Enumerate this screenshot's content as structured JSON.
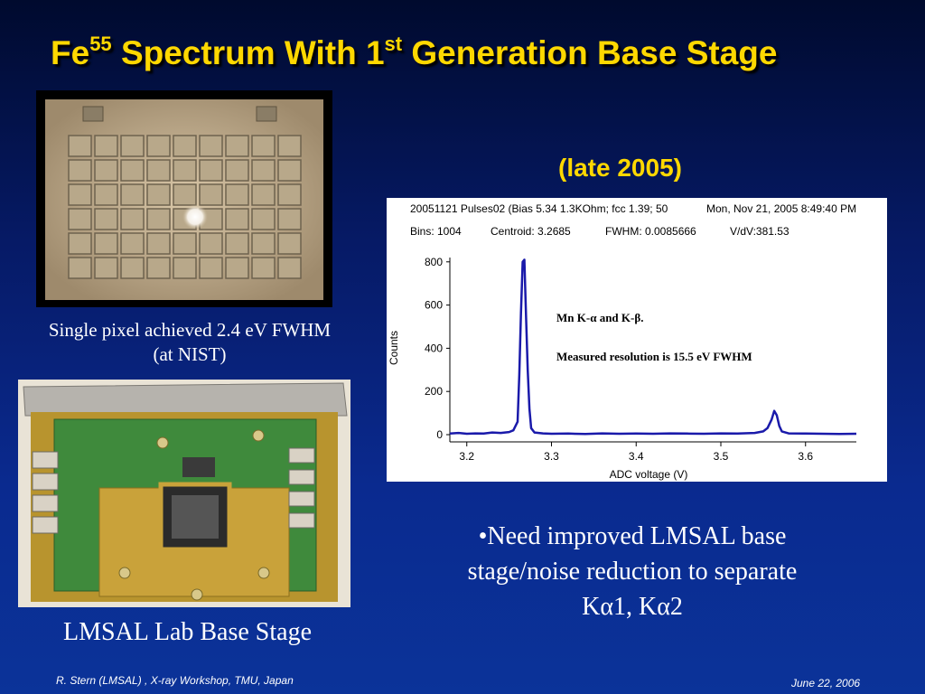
{
  "slide": {
    "title_part1": "Fe",
    "title_sup1": "55",
    "title_part2": " Spectrum With 1",
    "title_sup2": "st",
    "title_part3": " Generation Base Stage",
    "date_note": "(late 2005)",
    "caption_pixel_line1": "Single pixel achieved 2.4 eV FWHM",
    "caption_pixel_line2": "(at NIST)",
    "caption_stage": "LMSAL Lab Base Stage",
    "bullet_line1": "•Need improved LMSAL base",
    "bullet_line2": "stage/noise reduction to separate",
    "bullet_line3": "Kα1, Kα2",
    "footer_left": "R. Stern (LMSAL) , X-ray Workshop, TMU, Japan",
    "footer_right": "June 22, 2006",
    "colors": {
      "title": "#ffd800",
      "background": "#0a2a8f",
      "line": "#1a1aaa"
    }
  },
  "chart_data": {
    "type": "line",
    "header_line1_a": "20051121 Pulses02 (Bias 5.34 1.3KOhm; fcc 1.39; 50",
    "header_line1_b": "Mon, Nov 21, 2005  8:49:40 PM",
    "header_bins": "Bins: 1004",
    "header_centroid": "Centroid: 3.2685",
    "header_fwhm": "FWHM: 0.0085666",
    "header_vdv": "V/dV:381.53",
    "annotation_line1": "Mn K-α and K-β.",
    "annotation_line2": "Measured resolution is 15.5 eV FWHM",
    "xlabel": "ADC voltage (V)",
    "ylabel": "Counts",
    "xlim": [
      3.18,
      3.66
    ],
    "ylim": [
      0,
      820
    ],
    "xticks": [
      3.2,
      3.3,
      3.4,
      3.5,
      3.6
    ],
    "xtick_labels": [
      "3.2",
      "3.3",
      "3.4",
      "3.5",
      "3.6"
    ],
    "yticks": [
      0,
      200,
      400,
      600,
      800
    ],
    "ytick_labels": [
      "0",
      "200",
      "400",
      "600",
      "800"
    ],
    "series": [
      {
        "x": [
          3.18,
          3.19,
          3.2,
          3.21,
          3.22,
          3.23,
          3.24,
          3.25,
          3.255,
          3.26,
          3.262,
          3.264,
          3.266,
          3.268,
          3.27,
          3.272,
          3.274,
          3.276,
          3.28,
          3.29,
          3.3,
          3.32,
          3.34,
          3.36,
          3.38,
          3.4,
          3.42,
          3.44,
          3.46,
          3.48,
          3.5,
          3.52,
          3.54,
          3.55,
          3.555,
          3.56,
          3.563,
          3.566,
          3.569,
          3.572,
          3.58,
          3.6,
          3.62,
          3.64,
          3.66
        ],
        "values": [
          5,
          8,
          4,
          6,
          5,
          10,
          8,
          12,
          20,
          60,
          280,
          560,
          800,
          810,
          540,
          300,
          120,
          30,
          10,
          6,
          4,
          5,
          3,
          6,
          4,
          5,
          4,
          6,
          5,
          4,
          6,
          5,
          8,
          15,
          30,
          70,
          110,
          90,
          40,
          15,
          6,
          5,
          4,
          3,
          4
        ]
      }
    ]
  }
}
